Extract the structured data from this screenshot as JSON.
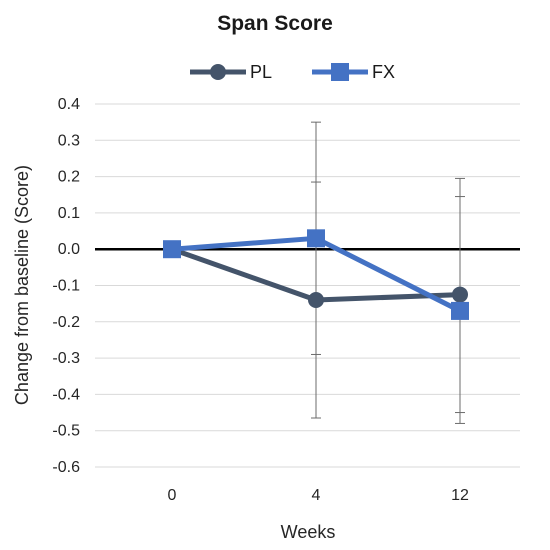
{
  "chart_data": {
    "type": "line",
    "title": "Span Score",
    "xlabel": "Weeks",
    "ylabel": "Change from baseline (Score)",
    "categories": [
      "0",
      "4",
      "12"
    ],
    "ylim": [
      -0.6,
      0.4
    ],
    "yticks": [
      0.4,
      0.3,
      0.2,
      0.1,
      0.0,
      -0.1,
      -0.2,
      -0.3,
      -0.4,
      -0.5,
      -0.6
    ],
    "ytick_labels": [
      "0.4",
      "0.3",
      "0.2",
      "0.1",
      "0.0",
      "-0.1",
      "-0.2",
      "-0.3",
      "-0.4",
      "-0.5",
      "-0.6"
    ],
    "grid": "horizontal",
    "legend_position": "top",
    "baseline": 0.0,
    "series": [
      {
        "name": "PL",
        "marker": "circle",
        "color": "#44546A",
        "values": [
          0.0,
          -0.14,
          -0.125
        ],
        "error_low": [
          null,
          -0.29,
          -0.45
        ],
        "error_high": [
          null,
          0.185,
          0.195
        ]
      },
      {
        "name": "FX",
        "marker": "square",
        "color": "#4472C4",
        "values": [
          0.0,
          0.03,
          -0.17
        ],
        "error_low": [
          null,
          -0.465,
          -0.48
        ],
        "error_high": [
          null,
          0.35,
          0.145
        ]
      }
    ]
  }
}
